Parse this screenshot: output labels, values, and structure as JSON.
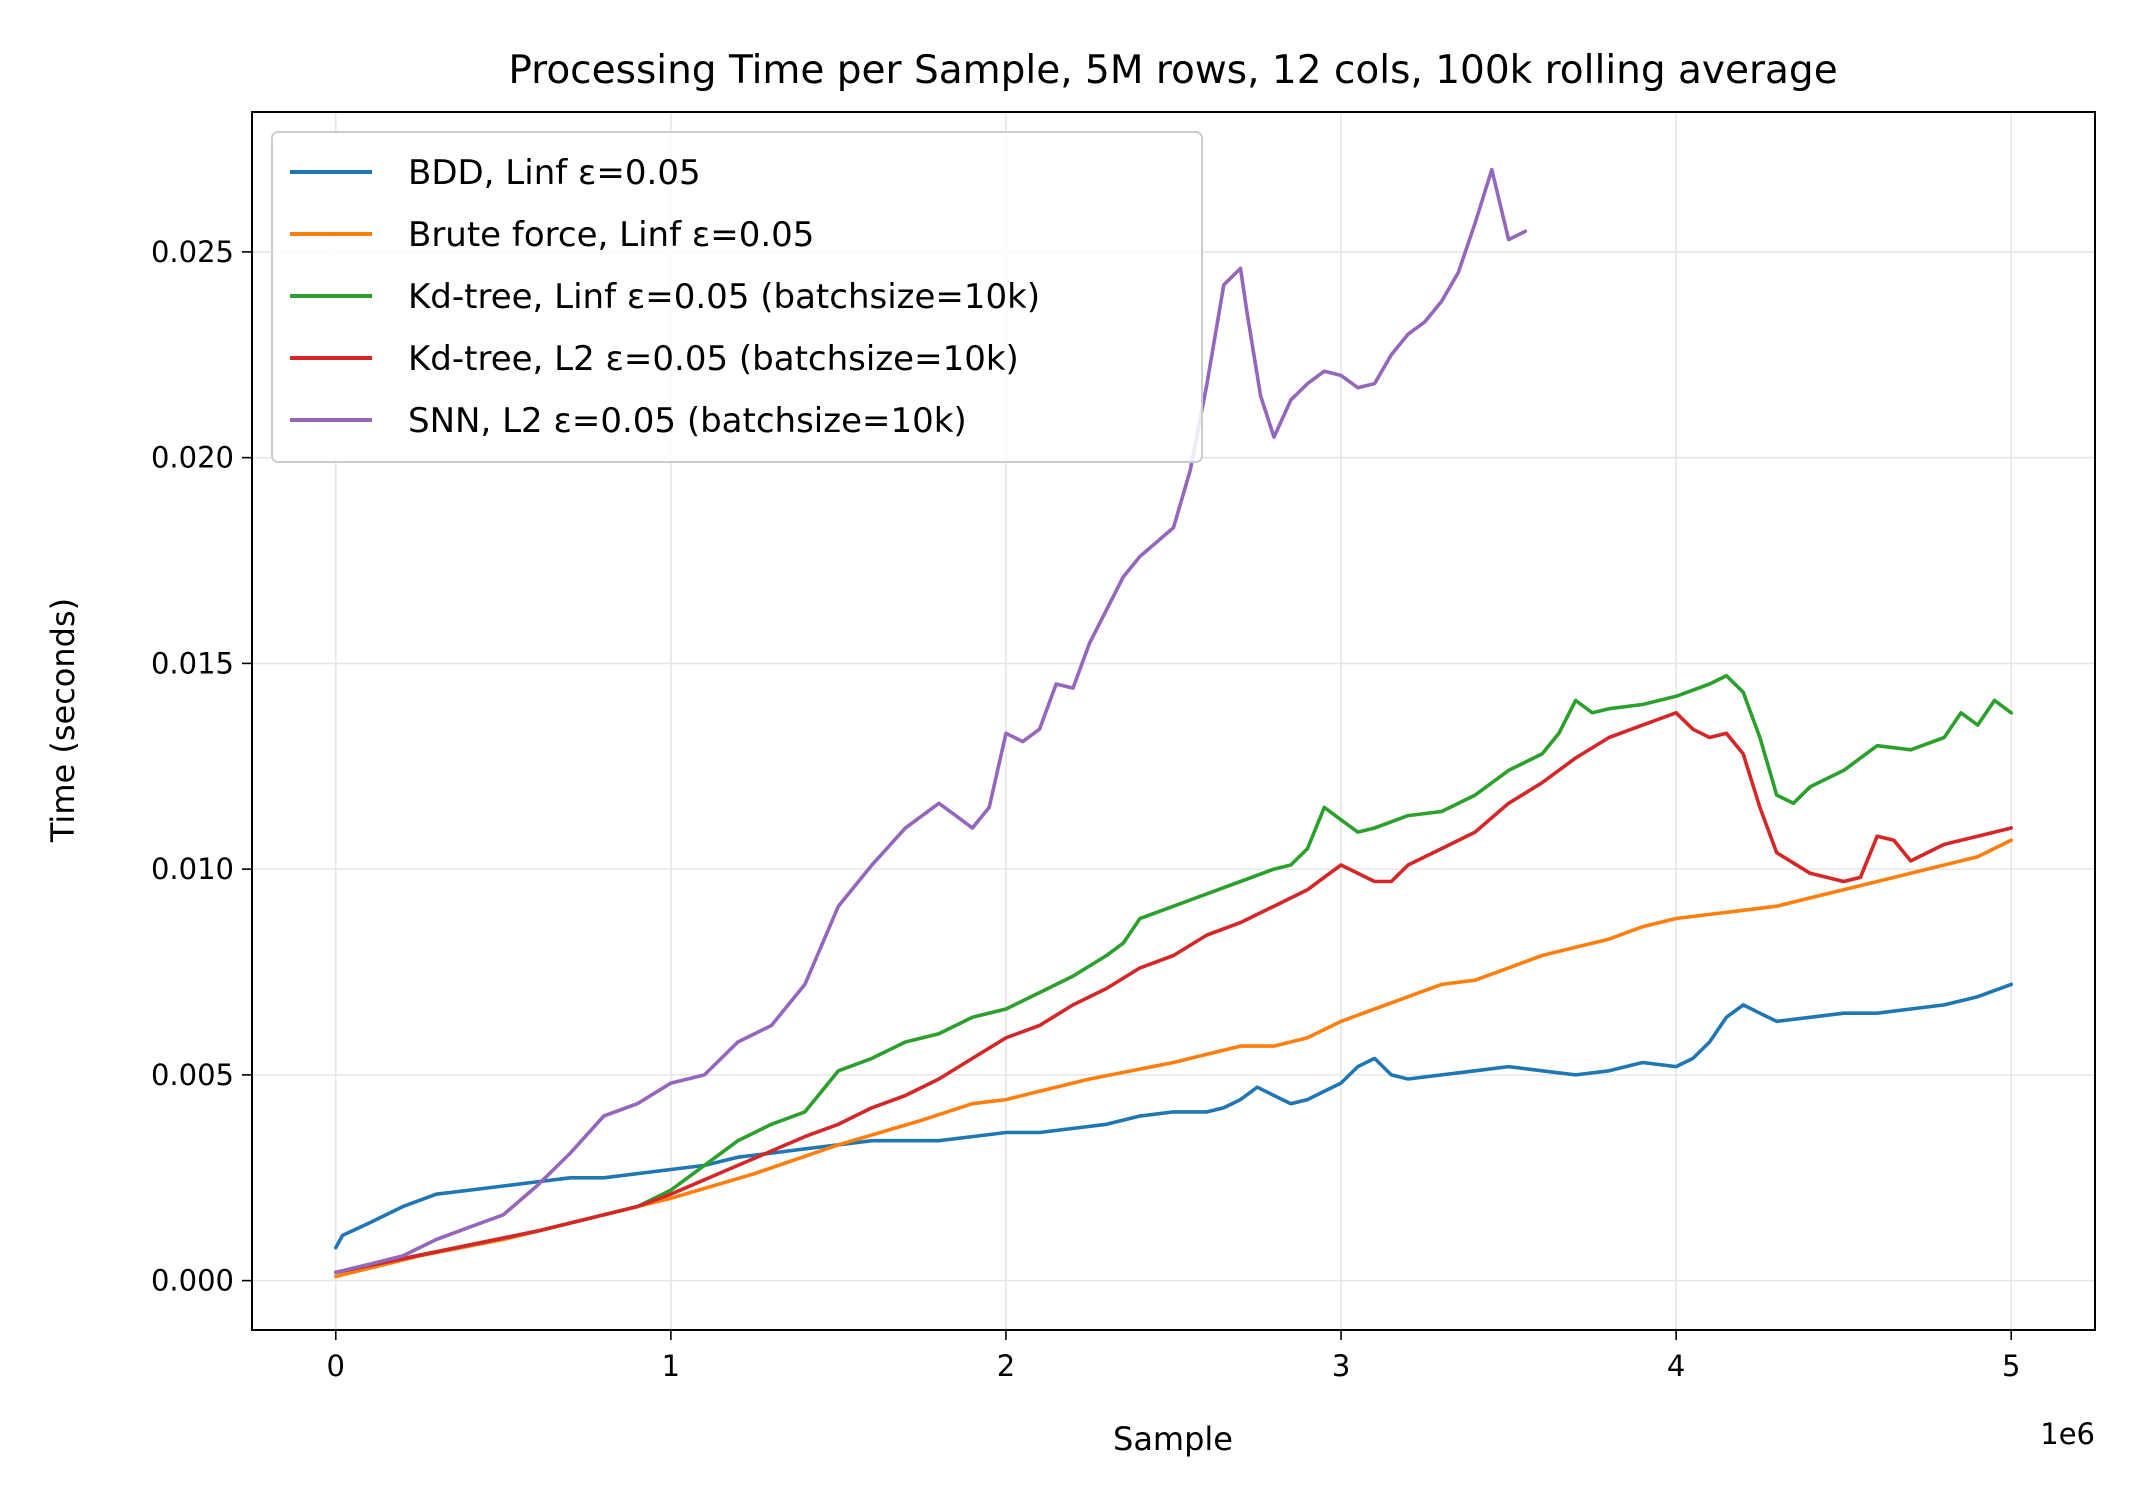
{
  "chart_data": {
    "type": "line",
    "title": "Processing Time per Sample, 5M rows, 12 cols, 100k rolling average",
    "xlabel": "Sample",
    "ylabel": "Time (seconds)",
    "x_offset_label": "1e6",
    "xlim": [
      -250000,
      5250000
    ],
    "ylim": [
      -0.0012,
      0.0284
    ],
    "xticks": [
      0,
      1000000,
      2000000,
      3000000,
      4000000,
      5000000
    ],
    "xtick_labels": [
      "0",
      "1",
      "2",
      "3",
      "4",
      "5"
    ],
    "yticks": [
      0,
      0.005,
      0.01,
      0.015,
      0.02,
      0.025
    ],
    "ytick_labels": [
      "0.000",
      "0.005",
      "0.010",
      "0.015",
      "0.020",
      "0.025"
    ],
    "grid": true,
    "legend_position": "upper-left",
    "series": [
      {
        "name": "BDD, Linf ε=0.05",
        "color": "#1f77b4",
        "x": [
          0,
          20000,
          100000,
          200000,
          300000,
          400000,
          500000,
          600000,
          700000,
          800000,
          900000,
          1000000,
          1100000,
          1200000,
          1300000,
          1400000,
          1500000,
          1600000,
          1700000,
          1800000,
          1900000,
          2000000,
          2100000,
          2200000,
          2300000,
          2400000,
          2500000,
          2600000,
          2650000,
          2700000,
          2750000,
          2800000,
          2850000,
          2900000,
          2950000,
          3000000,
          3050000,
          3100000,
          3150000,
          3200000,
          3300000,
          3400000,
          3500000,
          3600000,
          3700000,
          3800000,
          3900000,
          4000000,
          4050000,
          4100000,
          4150000,
          4200000,
          4250000,
          4300000,
          4400000,
          4500000,
          4600000,
          4700000,
          4800000,
          4900000,
          5000000
        ],
        "y": [
          0.0008,
          0.0011,
          0.0014,
          0.0018,
          0.0021,
          0.0022,
          0.0023,
          0.0024,
          0.0025,
          0.0025,
          0.0026,
          0.0027,
          0.0028,
          0.003,
          0.0031,
          0.0032,
          0.0033,
          0.0034,
          0.0034,
          0.0034,
          0.0035,
          0.0036,
          0.0036,
          0.0037,
          0.0038,
          0.004,
          0.0041,
          0.0041,
          0.0042,
          0.0044,
          0.0047,
          0.0045,
          0.0043,
          0.0044,
          0.0046,
          0.0048,
          0.0052,
          0.0054,
          0.005,
          0.0049,
          0.005,
          0.0051,
          0.0052,
          0.0051,
          0.005,
          0.0051,
          0.0053,
          0.0052,
          0.0054,
          0.0058,
          0.0064,
          0.0067,
          0.0065,
          0.0063,
          0.0064,
          0.0065,
          0.0065,
          0.0066,
          0.0067,
          0.0069,
          0.0072
        ]
      },
      {
        "name": "Brute force, Linf ε=0.05",
        "color": "#ff7f0e",
        "x": [
          0,
          250000,
          500000,
          750000,
          1000000,
          1250000,
          1500000,
          1750000,
          1900000,
          2000000,
          2100000,
          2250000,
          2500000,
          2600000,
          2700000,
          2800000,
          2900000,
          3000000,
          3100000,
          3200000,
          3300000,
          3400000,
          3500000,
          3600000,
          3700000,
          3800000,
          3900000,
          4000000,
          4100000,
          4200000,
          4300000,
          4400000,
          4500000,
          4600000,
          4700000,
          4800000,
          4900000,
          5000000
        ],
        "y": [
          0.0001,
          0.0006,
          0.001,
          0.0015,
          0.002,
          0.0026,
          0.0033,
          0.0039,
          0.0043,
          0.0044,
          0.0046,
          0.0049,
          0.0053,
          0.0055,
          0.0057,
          0.0057,
          0.0059,
          0.0063,
          0.0066,
          0.0069,
          0.0072,
          0.0073,
          0.0076,
          0.0079,
          0.0081,
          0.0083,
          0.0086,
          0.0088,
          0.0089,
          0.009,
          0.0091,
          0.0093,
          0.0095,
          0.0097,
          0.0099,
          0.0101,
          0.0103,
          0.0107
        ]
      },
      {
        "name": "Kd-tree, Linf ε=0.05 (batchsize=10k)",
        "color": "#2ca02c",
        "x": [
          0,
          300000,
          600000,
          900000,
          1000000,
          1100000,
          1200000,
          1300000,
          1400000,
          1450000,
          1500000,
          1600000,
          1700000,
          1800000,
          1900000,
          2000000,
          2100000,
          2200000,
          2300000,
          2350000,
          2400000,
          2500000,
          2600000,
          2700000,
          2800000,
          2850000,
          2900000,
          2950000,
          3000000,
          3050000,
          3100000,
          3200000,
          3300000,
          3400000,
          3500000,
          3600000,
          3650000,
          3700000,
          3750000,
          3800000,
          3900000,
          4000000,
          4100000,
          4150000,
          4200000,
          4250000,
          4300000,
          4350000,
          4400000,
          4500000,
          4600000,
          4700000,
          4800000,
          4850000,
          4900000,
          4950000,
          5000000
        ],
        "y": [
          0.0002,
          0.0007,
          0.0012,
          0.0018,
          0.0022,
          0.0028,
          0.0034,
          0.0038,
          0.0041,
          0.0046,
          0.0051,
          0.0054,
          0.0058,
          0.006,
          0.0064,
          0.0066,
          0.007,
          0.0074,
          0.0079,
          0.0082,
          0.0088,
          0.0091,
          0.0094,
          0.0097,
          0.01,
          0.0101,
          0.0105,
          0.0115,
          0.0112,
          0.0109,
          0.011,
          0.0113,
          0.0114,
          0.0118,
          0.0124,
          0.0128,
          0.0133,
          0.0141,
          0.0138,
          0.0139,
          0.014,
          0.0142,
          0.0145,
          0.0147,
          0.0143,
          0.0132,
          0.0118,
          0.0116,
          0.012,
          0.0124,
          0.013,
          0.0129,
          0.0132,
          0.0138,
          0.0135,
          0.0141,
          0.0138
        ]
      },
      {
        "name": "Kd-tree, L2 ε=0.05 (batchsize=10k)",
        "color": "#d62728",
        "x": [
          0,
          300000,
          600000,
          900000,
          1000000,
          1200000,
          1400000,
          1500000,
          1600000,
          1700000,
          1800000,
          1900000,
          2000000,
          2100000,
          2200000,
          2300000,
          2400000,
          2500000,
          2600000,
          2700000,
          2800000,
          2900000,
          3000000,
          3050000,
          3100000,
          3150000,
          3200000,
          3300000,
          3400000,
          3500000,
          3600000,
          3700000,
          3800000,
          3900000,
          4000000,
          4050000,
          4100000,
          4150000,
          4200000,
          4250000,
          4300000,
          4400000,
          4500000,
          4550000,
          4600000,
          4650000,
          4700000,
          4800000,
          4900000,
          5000000
        ],
        "y": [
          0.0002,
          0.0007,
          0.0012,
          0.0018,
          0.0021,
          0.0028,
          0.0035,
          0.0038,
          0.0042,
          0.0045,
          0.0049,
          0.0054,
          0.0059,
          0.0062,
          0.0067,
          0.0071,
          0.0076,
          0.0079,
          0.0084,
          0.0087,
          0.0091,
          0.0095,
          0.0101,
          0.0099,
          0.0097,
          0.0097,
          0.0101,
          0.0105,
          0.0109,
          0.0116,
          0.0121,
          0.0127,
          0.0132,
          0.0135,
          0.0138,
          0.0134,
          0.0132,
          0.0133,
          0.0128,
          0.0115,
          0.0104,
          0.0099,
          0.0097,
          0.0098,
          0.0108,
          0.0107,
          0.0102,
          0.0106,
          0.0108,
          0.011
        ]
      },
      {
        "name": "SNN, L2 ε=0.05 (batchsize=10k)",
        "color": "#9467bd",
        "x": [
          0,
          100000,
          200000,
          300000,
          400000,
          500000,
          600000,
          700000,
          800000,
          900000,
          1000000,
          1100000,
          1200000,
          1300000,
          1400000,
          1500000,
          1600000,
          1700000,
          1800000,
          1850000,
          1900000,
          1950000,
          2000000,
          2050000,
          2100000,
          2150000,
          2200000,
          2250000,
          2300000,
          2350000,
          2400000,
          2500000,
          2550000,
          2600000,
          2650000,
          2700000,
          2720000,
          2760000,
          2800000,
          2850000,
          2900000,
          2950000,
          3000000,
          3050000,
          3100000,
          3150000,
          3200000,
          3250000,
          3300000,
          3350000,
          3400000,
          3450000,
          3500000,
          3550000
        ],
        "y": [
          0.0002,
          0.0004,
          0.0006,
          0.001,
          0.0013,
          0.0016,
          0.0023,
          0.0031,
          0.004,
          0.0043,
          0.0048,
          0.005,
          0.0058,
          0.0062,
          0.0072,
          0.0091,
          0.0101,
          0.011,
          0.0116,
          0.0113,
          0.011,
          0.0115,
          0.0133,
          0.0131,
          0.0134,
          0.0145,
          0.0144,
          0.0155,
          0.0163,
          0.0171,
          0.0176,
          0.0183,
          0.0197,
          0.0218,
          0.0242,
          0.0246,
          0.0235,
          0.0215,
          0.0205,
          0.0214,
          0.0218,
          0.0221,
          0.022,
          0.0217,
          0.0218,
          0.0225,
          0.023,
          0.0233,
          0.0238,
          0.0245,
          0.0257,
          0.027,
          0.0253,
          0.0255
        ]
      }
    ]
  }
}
